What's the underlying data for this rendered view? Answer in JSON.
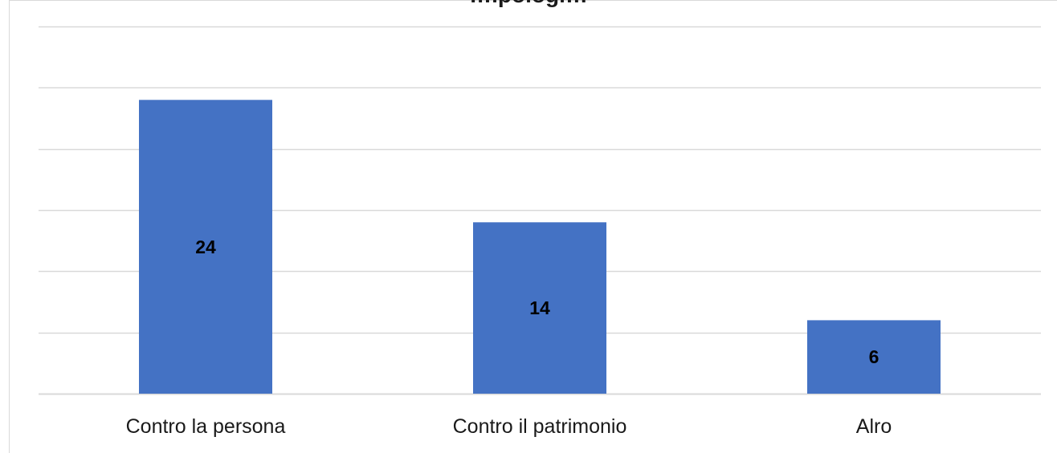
{
  "chart_data": {
    "type": "bar",
    "title": "…ipologi…",
    "categories": [
      "Contro la persona",
      "Contro il patrimonio",
      "Alro"
    ],
    "series": [
      {
        "values": [
          24,
          14,
          6
        ]
      }
    ],
    "ylim": [
      0,
      30
    ],
    "grid": true,
    "data_labels": true,
    "colors": {
      "bar": "#4472c4",
      "grid": "#d9d9d9",
      "label": "#000000",
      "tick_label": "#1a1a1a"
    }
  }
}
